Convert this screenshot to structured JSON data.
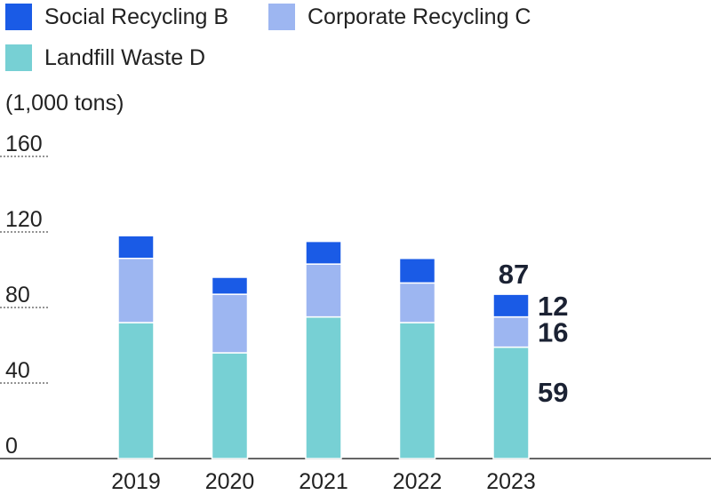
{
  "legend": [
    {
      "label": "Social Recycling B",
      "color": "#1a5be6"
    },
    {
      "label": "Corporate Recycling C",
      "color": "#9db6f1"
    },
    {
      "label": "Landfill Waste D",
      "color": "#77d0d4"
    }
  ],
  "unit_label": "(1,000 tons)",
  "chart_data": {
    "type": "bar",
    "stacked": true,
    "categories": [
      "2019",
      "2020",
      "2021",
      "2022",
      "2023"
    ],
    "series": [
      {
        "name": "Landfill Waste D",
        "color": "#77d0d4",
        "values": [
          72,
          56,
          75,
          72,
          59
        ]
      },
      {
        "name": "Corporate Recycling C",
        "color": "#9db6f1",
        "values": [
          34,
          31,
          28,
          21,
          16
        ]
      },
      {
        "name": "Social Recycling B",
        "color": "#1a5be6",
        "values": [
          12,
          9,
          12,
          13,
          12
        ]
      }
    ],
    "ylim": [
      0,
      160
    ],
    "yticks": [
      "0",
      "40",
      "80",
      "120",
      "160"
    ],
    "grid": true,
    "annotations": {
      "category": "2023",
      "total": "87",
      "series_labels": [
        "59",
        "16",
        "12"
      ]
    }
  }
}
